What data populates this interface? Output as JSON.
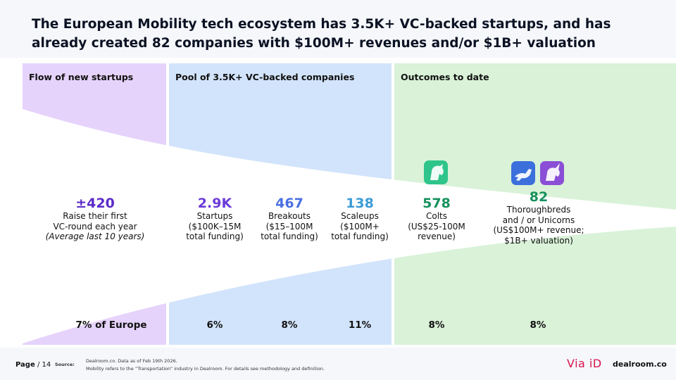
{
  "title": "The European Mobility tech ecosystem has 3.5K+ VC-backed startups, and has already created 82 companies with $100M+ revenues and/or $1B+ valuation",
  "columns": {
    "flow": "Flow of new startups",
    "pool": "Pool of 3.5K+ VC-backed companies",
    "outcomes": "Outcomes to date"
  },
  "metrics": {
    "new": {
      "value": "±420",
      "line1": "Raise their first",
      "line2": "VC-round each year",
      "note": "(Average last 10 years)",
      "color": "#5b2bc9"
    },
    "startups": {
      "value": "2.9K",
      "line1": "Startups",
      "line2": "($100K–15M",
      "line3": "total funding)",
      "color": "#6b3bd8"
    },
    "breakouts": {
      "value": "467",
      "line1": "Breakouts",
      "line2": "($15–100M",
      "line3": "total funding)",
      "color": "#4a6fe3"
    },
    "scaleups": {
      "value": "138",
      "line1": "Scaleups",
      "line2": "($100M+",
      "line3": "total funding)",
      "color": "#3b9bd6"
    },
    "colts": {
      "value": "578",
      "line1": "Colts",
      "line2": "(US$25-100M",
      "line3": "revenue)",
      "color": "#16915c"
    },
    "unicorns": {
      "value": "82",
      "line1": "Thoroughbreds",
      "line2": "and / or Unicorns",
      "line3": "(US$100M+ revenue;",
      "line4": "$1B+ valuation)",
      "color": "#16915c"
    }
  },
  "percentages": {
    "europe": "7% of Europe",
    "startups": "6%",
    "breakouts": "8%",
    "scaleups": "11%",
    "colts": "8%",
    "unicorns": "8%"
  },
  "colors": {
    "flow_bg": "#e6d3fb",
    "pool_bg": "#d2e4fb",
    "outcomes_bg": "#d9f2d8",
    "colt_icon": "#2ec48a",
    "horse_icon": "#3b6fdc",
    "unicorn_icon": "#8a4fd6"
  },
  "icons": {
    "colt": "colt-horse-icon",
    "thoroughbred": "thoroughbred-horse-icon",
    "unicorn": "unicorn-icon"
  },
  "footer": {
    "page_label": "Page",
    "page_number": "/ 14",
    "source_label": "Source:",
    "source_line1": "Dealroom.co.  Data as of Feb 19th 2026.",
    "source_line2": "Mobility refers to the “Transportation” industry in Dealroom.  For details see methodology and definition.",
    "partner": "Via iD",
    "brand": "dealroom.co"
  }
}
